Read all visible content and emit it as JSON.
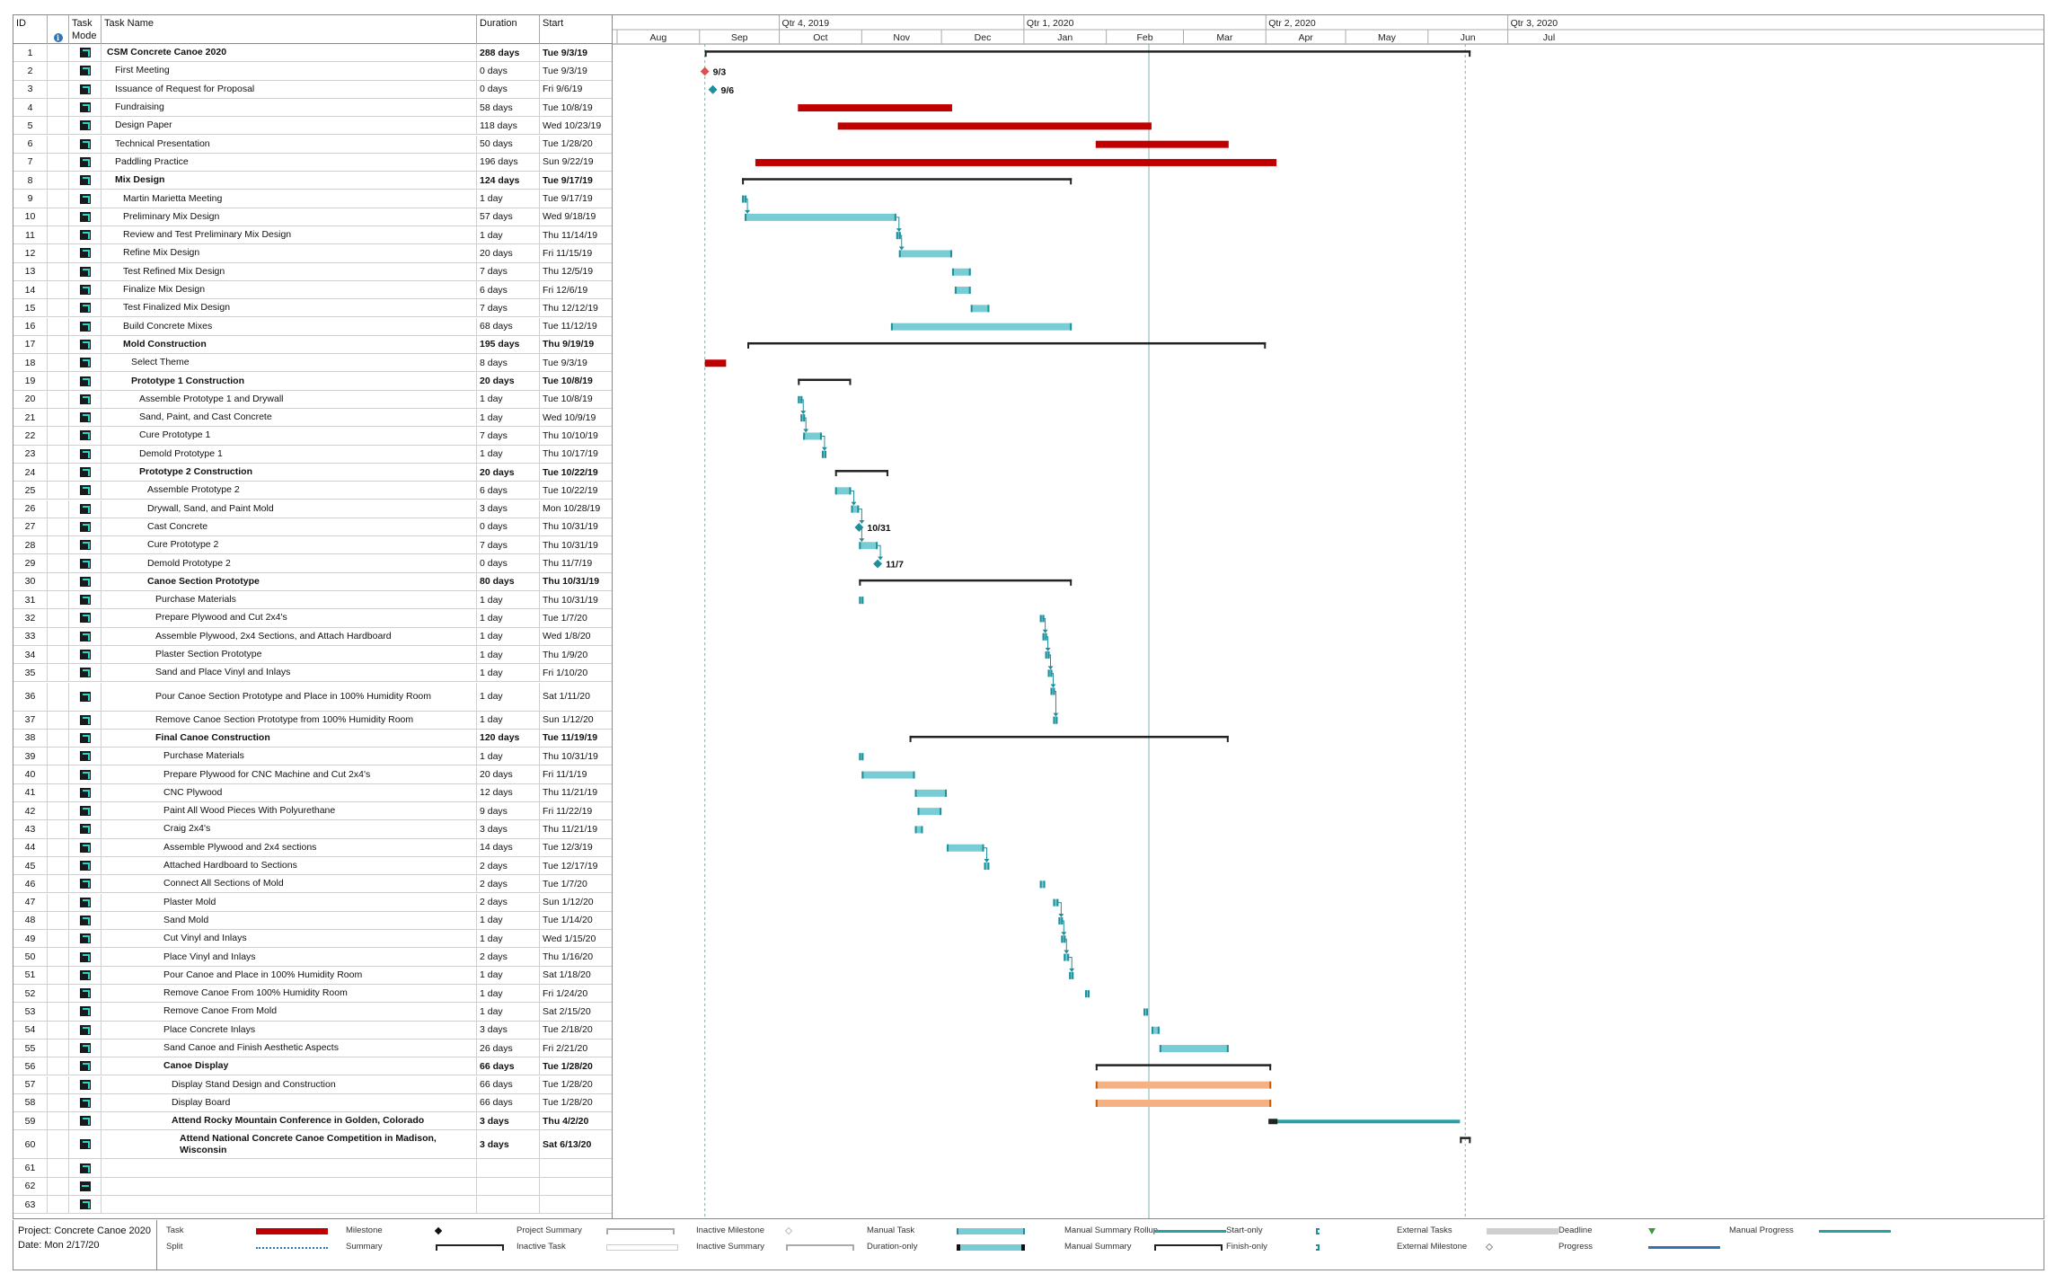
{
  "columns": {
    "id": "ID",
    "mode": "Task Mode",
    "name": "Task Name",
    "duration": "Duration",
    "start": "Start"
  },
  "timescale": {
    "quarters": [
      "Qtr 4, 2019",
      "Qtr 1, 2020",
      "Qtr 2, 2020",
      "Qtr 3, 2020"
    ],
    "months": [
      "Aug",
      "Sep",
      "Oct",
      "Nov",
      "Dec",
      "Jan",
      "Feb",
      "Mar",
      "Apr",
      "May",
      "Jun",
      "Jul"
    ]
  },
  "tasks": [
    {
      "id": "1",
      "name": "CSM Concrete Canoe 2020",
      "duration": "288 days",
      "start": "Tue 9/3/19",
      "level": 0,
      "bold": true
    },
    {
      "id": "2",
      "name": "First Meeting",
      "duration": "0 days",
      "start": "Tue 9/3/19",
      "level": 1
    },
    {
      "id": "3",
      "name": "Issuance of Request for Proposal",
      "duration": "0 days",
      "start": "Fri 9/6/19",
      "level": 1
    },
    {
      "id": "4",
      "name": "Fundraising",
      "duration": "58 days",
      "start": "Tue 10/8/19",
      "level": 1
    },
    {
      "id": "5",
      "name": "Design Paper",
      "duration": "118 days",
      "start": "Wed 10/23/19",
      "level": 1
    },
    {
      "id": "6",
      "name": "Technical Presentation",
      "duration": "50 days",
      "start": "Tue 1/28/20",
      "level": 1
    },
    {
      "id": "7",
      "name": "Paddling Practice",
      "duration": "196 days",
      "start": "Sun 9/22/19",
      "level": 1
    },
    {
      "id": "8",
      "name": "Mix Design",
      "duration": "124 days",
      "start": "Tue 9/17/19",
      "level": 1,
      "bold": true
    },
    {
      "id": "9",
      "name": "Martin Marietta Meeting",
      "duration": "1 day",
      "start": "Tue 9/17/19",
      "level": 2
    },
    {
      "id": "10",
      "name": "Preliminary Mix Design",
      "duration": "57 days",
      "start": "Wed 9/18/19",
      "level": 2
    },
    {
      "id": "11",
      "name": "Review and Test Preliminary Mix Design",
      "duration": "1 day",
      "start": "Thu 11/14/19",
      "level": 2
    },
    {
      "id": "12",
      "name": "Refine Mix Design",
      "duration": "20 days",
      "start": "Fri 11/15/19",
      "level": 2
    },
    {
      "id": "13",
      "name": "Test Refined Mix Design",
      "duration": "7 days",
      "start": "Thu 12/5/19",
      "level": 2
    },
    {
      "id": "14",
      "name": "Finalize Mix Design",
      "duration": "6 days",
      "start": "Fri 12/6/19",
      "level": 2
    },
    {
      "id": "15",
      "name": "Test Finalized Mix Design",
      "duration": "7 days",
      "start": "Thu 12/12/19",
      "level": 2
    },
    {
      "id": "16",
      "name": "Build Concrete Mixes",
      "duration": "68 days",
      "start": "Tue 11/12/19",
      "level": 2
    },
    {
      "id": "17",
      "name": "Mold Construction",
      "duration": "195 days",
      "start": "Thu 9/19/19",
      "level": 2,
      "bold": true
    },
    {
      "id": "18",
      "name": "Select Theme",
      "duration": "8 days",
      "start": "Tue 9/3/19",
      "level": 3
    },
    {
      "id": "19",
      "name": "Prototype 1 Construction",
      "duration": "20 days",
      "start": "Tue 10/8/19",
      "level": 3,
      "bold": true
    },
    {
      "id": "20",
      "name": "Assemble Prototype 1 and Drywall",
      "duration": "1 day",
      "start": "Tue 10/8/19",
      "level": 4
    },
    {
      "id": "21",
      "name": "Sand, Paint, and Cast Concrete",
      "duration": "1 day",
      "start": "Wed 10/9/19",
      "level": 4
    },
    {
      "id": "22",
      "name": "Cure Prototype 1",
      "duration": "7 days",
      "start": "Thu 10/10/19",
      "level": 4
    },
    {
      "id": "23",
      "name": "Demold Prototype 1",
      "duration": "1 day",
      "start": "Thu 10/17/19",
      "level": 4
    },
    {
      "id": "24",
      "name": "Prototype 2 Construction",
      "duration": "20 days",
      "start": "Tue 10/22/19",
      "level": 4,
      "bold": true
    },
    {
      "id": "25",
      "name": "Assemble Prototype 2",
      "duration": "6 days",
      "start": "Tue 10/22/19",
      "level": 5
    },
    {
      "id": "26",
      "name": "Drywall, Sand, and Paint Mold",
      "duration": "3 days",
      "start": "Mon 10/28/19",
      "level": 5
    },
    {
      "id": "27",
      "name": "Cast Concrete",
      "duration": "0 days",
      "start": "Thu 10/31/19",
      "level": 5
    },
    {
      "id": "28",
      "name": "Cure Prototype 2",
      "duration": "7 days",
      "start": "Thu 10/31/19",
      "level": 5
    },
    {
      "id": "29",
      "name": "Demold Prototype 2",
      "duration": "0 days",
      "start": "Thu 11/7/19",
      "level": 5
    },
    {
      "id": "30",
      "name": "Canoe Section Prototype",
      "duration": "80 days",
      "start": "Thu 10/31/19",
      "level": 5,
      "bold": true
    },
    {
      "id": "31",
      "name": "Purchase Materials",
      "duration": "1 day",
      "start": "Thu 10/31/19",
      "level": 6
    },
    {
      "id": "32",
      "name": "Prepare Plywood and Cut 2x4's",
      "duration": "1 day",
      "start": "Tue 1/7/20",
      "level": 6
    },
    {
      "id": "33",
      "name": "Assemble Plywood, 2x4 Sections, and Attach Hardboard",
      "duration": "1 day",
      "start": "Wed 1/8/20",
      "level": 6
    },
    {
      "id": "34",
      "name": "Plaster Section Prototype",
      "duration": "1 day",
      "start": "Thu 1/9/20",
      "level": 6
    },
    {
      "id": "35",
      "name": "Sand and Place Vinyl and Inlays",
      "duration": "1 day",
      "start": "Fri 1/10/20",
      "level": 6
    },
    {
      "id": "36",
      "name": "Pour Canoe Section Prototype and Place in 100% Humidity Room",
      "duration": "1 day",
      "start": "Sat 1/11/20",
      "level": 6,
      "tall": true
    },
    {
      "id": "37",
      "name": "Remove Canoe Section Prototype from 100% Humidity Room",
      "duration": "1 day",
      "start": "Sun 1/12/20",
      "level": 6
    },
    {
      "id": "38",
      "name": "Final Canoe Construction",
      "duration": "120 days",
      "start": "Tue 11/19/19",
      "level": 6,
      "bold": true
    },
    {
      "id": "39",
      "name": "Purchase Materials",
      "duration": "1 day",
      "start": "Thu 10/31/19",
      "level": 7
    },
    {
      "id": "40",
      "name": "Prepare Plywood for CNC Machine and Cut 2x4's",
      "duration": "20 days",
      "start": "Fri 11/1/19",
      "level": 7
    },
    {
      "id": "41",
      "name": "CNC Plywood",
      "duration": "12 days",
      "start": "Thu 11/21/19",
      "level": 7
    },
    {
      "id": "42",
      "name": "Paint All Wood Pieces With Polyurethane",
      "duration": "9 days",
      "start": "Fri 11/22/19",
      "level": 7
    },
    {
      "id": "43",
      "name": "Craig 2x4's",
      "duration": "3 days",
      "start": "Thu 11/21/19",
      "level": 7
    },
    {
      "id": "44",
      "name": "Assemble Plywood and 2x4 sections",
      "duration": "14 days",
      "start": "Tue 12/3/19",
      "level": 7
    },
    {
      "id": "45",
      "name": "Attached Hardboard to Sections",
      "duration": "2 days",
      "start": "Tue 12/17/19",
      "level": 7
    },
    {
      "id": "46",
      "name": "Connect All Sections of Mold",
      "duration": "2 days",
      "start": "Tue 1/7/20",
      "level": 7
    },
    {
      "id": "47",
      "name": "Plaster Mold",
      "duration": "2 days",
      "start": "Sun 1/12/20",
      "level": 7
    },
    {
      "id": "48",
      "name": "Sand Mold",
      "duration": "1 day",
      "start": "Tue 1/14/20",
      "level": 7
    },
    {
      "id": "49",
      "name": "Cut Vinyl and Inlays",
      "duration": "1 day",
      "start": "Wed 1/15/20",
      "level": 7
    },
    {
      "id": "50",
      "name": "Place Vinyl and Inlays",
      "duration": "2 days",
      "start": "Thu 1/16/20",
      "level": 7
    },
    {
      "id": "51",
      "name": "Pour Canoe and Place in 100% Humidity Room",
      "duration": "1 day",
      "start": "Sat 1/18/20",
      "level": 7
    },
    {
      "id": "52",
      "name": "Remove Canoe From 100% Humidity Room",
      "duration": "1 day",
      "start": "Fri 1/24/20",
      "level": 7
    },
    {
      "id": "53",
      "name": "Remove Canoe From Mold",
      "duration": "1 day",
      "start": "Sat 2/15/20",
      "level": 7
    },
    {
      "id": "54",
      "name": "Place Concrete Inlays",
      "duration": "3 days",
      "start": "Tue 2/18/20",
      "level": 7
    },
    {
      "id": "55",
      "name": "Sand Canoe and Finish Aesthetic Aspects",
      "duration": "26 days",
      "start": "Fri 2/21/20",
      "level": 7
    },
    {
      "id": "56",
      "name": "Canoe Display",
      "duration": "66 days",
      "start": "Tue 1/28/20",
      "level": 7,
      "bold": true
    },
    {
      "id": "57",
      "name": "Display Stand Design and Construction",
      "duration": "66 days",
      "start": "Tue 1/28/20",
      "level": 8
    },
    {
      "id": "58",
      "name": "Display Board",
      "duration": "66 days",
      "start": "Tue 1/28/20",
      "level": 8
    },
    {
      "id": "59",
      "name": "Attend Rocky Mountain Conference in Golden, Colorado",
      "duration": "3 days",
      "start": "Thu 4/2/20",
      "level": 8,
      "bold": true
    },
    {
      "id": "60",
      "name": "Attend National Concrete Canoe Competition in Madison, Wisconsin",
      "duration": "3 days",
      "start": "Sat 6/13/20",
      "level": 9,
      "bold": true,
      "tall": true
    },
    {
      "id": "61",
      "name": "",
      "duration": "",
      "start": "",
      "level": 0
    },
    {
      "id": "62",
      "name": "",
      "duration": "",
      "start": "",
      "level": 0,
      "dash": true
    },
    {
      "id": "63",
      "name": "",
      "duration": "",
      "start": "",
      "level": 0
    }
  ],
  "milestone_labels": [
    "9/3",
    "9/6",
    "10/31",
    "11/7"
  ],
  "legend": {
    "project": "Project: Concrete Canoe 2020",
    "date": "Date: Mon 2/17/20",
    "items": [
      "Task",
      "Split",
      "Milestone",
      "Summary",
      "Project Summary",
      "Inactive Task",
      "Inactive Milestone",
      "Inactive Summary",
      "Manual Task",
      "Duration-only",
      "Manual Summary Rollup",
      "Manual Summary",
      "Start-only",
      "Finish-only",
      "External Tasks",
      "External Milestone",
      "Deadline",
      "Progress",
      "Manual Progress"
    ]
  },
  "colors": {
    "task": "#c00000",
    "manual": "#78ccd4",
    "manual_edge": "#1f8f9a",
    "summary": "#222222",
    "orange": "#f4b183",
    "orange_edge": "#c55a11",
    "rollup": "#2a9fa6"
  }
}
